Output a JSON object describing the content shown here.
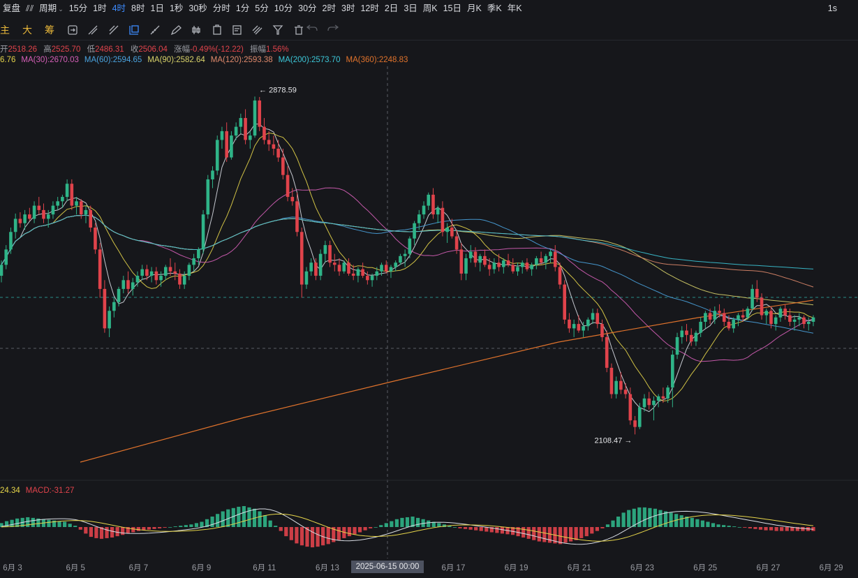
{
  "topbar": {
    "items": [
      "复盘",
      "⫽⫽",
      "周期",
      "15分",
      "1时",
      "4时",
      "8时",
      "1日",
      "1秒",
      "30秒",
      "分时",
      "1分",
      "5分",
      "10分",
      "30分",
      "2时",
      "3时",
      "12时",
      "2日",
      "3日",
      "周K",
      "15日",
      "月K",
      "季K",
      "年K"
    ],
    "active_index": 5,
    "right_label": "1s"
  },
  "toolbar": {
    "labels": [
      "主",
      "大",
      "筹"
    ]
  },
  "ohlc": {
    "open_label": "开",
    "open": "2518.26",
    "high_label": "高",
    "high": "2525.70",
    "low_label": "低",
    "low": "2486.31",
    "close_label": "收",
    "close": "2506.04",
    "change_label": "涨幅",
    "change": "-0.49%(-12.22)",
    "amp_label": "振幅",
    "amp": "1.56%"
  },
  "ma_legend": [
    {
      "text": "6.76",
      "color": "#e6d54a"
    },
    {
      "text": "MA(30):2670.03",
      "color": "#d65fb8"
    },
    {
      "text": "MA(60):2594.65",
      "color": "#4aa3df"
    },
    {
      "text": "MA(90):2582.64",
      "color": "#d9d36a"
    },
    {
      "text": "MA(120):2593.38",
      "color": "#e08a6c"
    },
    {
      "text": "MA(200):2573.70",
      "color": "#3cc7d8"
    },
    {
      "text": "MA(360):2248.83",
      "color": "#e0732c"
    }
  ],
  "macd_legend": [
    {
      "text": "24.34",
      "color": "#e6d54a"
    },
    {
      "text": "MACD:-31.27",
      "color": "#e0434b"
    }
  ],
  "x_labels": [
    "6月 3",
    "6月 5",
    "6月 7",
    "6月 9",
    "6月 11",
    "6月 13",
    "6月 17",
    "6月 19",
    "6月 21",
    "6月 23",
    "6月 25",
    "6月 27",
    "6月 29"
  ],
  "crosshair_label": "2025-06-15 00:00",
  "colors": {
    "up": "#2fb488",
    "down": "#e0434b",
    "bg": "#16171b"
  },
  "chart_data": {
    "type": "candlestick",
    "title": "",
    "ylim": [
      2040,
      2940
    ],
    "x_domain_days": [
      2.0,
      29.5
    ],
    "high_marker": "2878.59",
    "low_marker": "2108.47",
    "candles_ohlc": [
      [
        2470,
        2505,
        2455,
        2495
      ],
      [
        2495,
        2540,
        2485,
        2530
      ],
      [
        2530,
        2580,
        2520,
        2570
      ],
      [
        2570,
        2612,
        2555,
        2600
      ],
      [
        2600,
        2615,
        2580,
        2590
      ],
      [
        2590,
        2620,
        2575,
        2610
      ],
      [
        2610,
        2625,
        2595,
        2600
      ],
      [
        2600,
        2640,
        2590,
        2630
      ],
      [
        2630,
        2650,
        2610,
        2620
      ],
      [
        2620,
        2635,
        2590,
        2600
      ],
      [
        2600,
        2620,
        2580,
        2610
      ],
      [
        2610,
        2640,
        2600,
        2630
      ],
      [
        2630,
        2650,
        2620,
        2640
      ],
      [
        2640,
        2655,
        2625,
        2650
      ],
      [
        2650,
        2690,
        2640,
        2680
      ],
      [
        2680,
        2690,
        2620,
        2630
      ],
      [
        2630,
        2650,
        2610,
        2640
      ],
      [
        2640,
        2645,
        2600,
        2610
      ],
      [
        2610,
        2630,
        2590,
        2620
      ],
      [
        2620,
        2630,
        2570,
        2580
      ],
      [
        2580,
        2590,
        2520,
        2530
      ],
      [
        2530,
        2545,
        2420,
        2440
      ],
      [
        2440,
        2460,
        2340,
        2350
      ],
      [
        2350,
        2400,
        2330,
        2390
      ],
      [
        2390,
        2420,
        2375,
        2410
      ],
      [
        2410,
        2445,
        2400,
        2440
      ],
      [
        2440,
        2470,
        2430,
        2460
      ],
      [
        2460,
        2480,
        2430,
        2440
      ],
      [
        2440,
        2465,
        2425,
        2455
      ],
      [
        2455,
        2480,
        2445,
        2470
      ],
      [
        2470,
        2495,
        2460,
        2485
      ],
      [
        2485,
        2495,
        2460,
        2470
      ],
      [
        2470,
        2490,
        2455,
        2480
      ],
      [
        2480,
        2490,
        2450,
        2460
      ],
      [
        2460,
        2480,
        2445,
        2470
      ],
      [
        2470,
        2495,
        2460,
        2490
      ],
      [
        2490,
        2510,
        2470,
        2480
      ],
      [
        2480,
        2500,
        2460,
        2475
      ],
      [
        2475,
        2485,
        2440,
        2450
      ],
      [
        2450,
        2480,
        2440,
        2470
      ],
      [
        2470,
        2500,
        2460,
        2495
      ],
      [
        2495,
        2520,
        2480,
        2510
      ],
      [
        2510,
        2535,
        2495,
        2530
      ],
      [
        2530,
        2620,
        2520,
        2610
      ],
      [
        2610,
        2700,
        2600,
        2690
      ],
      [
        2690,
        2720,
        2670,
        2710
      ],
      [
        2710,
        2790,
        2700,
        2780
      ],
      [
        2780,
        2810,
        2760,
        2800
      ],
      [
        2800,
        2820,
        2730,
        2740
      ],
      [
        2740,
        2800,
        2735,
        2790
      ],
      [
        2790,
        2820,
        2780,
        2810
      ],
      [
        2810,
        2840,
        2795,
        2830
      ],
      [
        2830,
        2850,
        2770,
        2780
      ],
      [
        2780,
        2800,
        2760,
        2790
      ],
      [
        2790,
        2879,
        2785,
        2870
      ],
      [
        2870,
        2878,
        2800,
        2810
      ],
      [
        2810,
        2830,
        2770,
        2780
      ],
      [
        2780,
        2800,
        2755,
        2770
      ],
      [
        2770,
        2790,
        2745,
        2760
      ],
      [
        2760,
        2780,
        2730,
        2740
      ],
      [
        2740,
        2760,
        2690,
        2700
      ],
      [
        2700,
        2720,
        2640,
        2650
      ],
      [
        2650,
        2670,
        2630,
        2640
      ],
      [
        2640,
        2660,
        2560,
        2570
      ],
      [
        2570,
        2580,
        2420,
        2450
      ],
      [
        2450,
        2490,
        2440,
        2480
      ],
      [
        2480,
        2510,
        2470,
        2500
      ],
      [
        2500,
        2510,
        2460,
        2470
      ],
      [
        2470,
        2530,
        2460,
        2520
      ],
      [
        2520,
        2550,
        2500,
        2540
      ],
      [
        2540,
        2550,
        2490,
        2500
      ],
      [
        2500,
        2520,
        2480,
        2495
      ],
      [
        2495,
        2510,
        2470,
        2480
      ],
      [
        2480,
        2505,
        2475,
        2500
      ],
      [
        2500,
        2510,
        2470,
        2475
      ],
      [
        2475,
        2495,
        2460,
        2470
      ],
      [
        2470,
        2490,
        2455,
        2485
      ],
      [
        2485,
        2500,
        2465,
        2470
      ],
      [
        2470,
        2480,
        2450,
        2460
      ],
      [
        2460,
        2475,
        2445,
        2470
      ],
      [
        2470,
        2490,
        2460,
        2480
      ],
      [
        2480,
        2500,
        2470,
        2495
      ],
      [
        2495,
        2505,
        2475,
        2480
      ],
      [
        2480,
        2495,
        2465,
        2490
      ],
      [
        2490,
        2505,
        2480,
        2500
      ],
      [
        2500,
        2520,
        2495,
        2515
      ],
      [
        2515,
        2530,
        2490,
        2520
      ],
      [
        2520,
        2560,
        2510,
        2555
      ],
      [
        2555,
        2595,
        2540,
        2590
      ],
      [
        2590,
        2620,
        2575,
        2610
      ],
      [
        2610,
        2640,
        2600,
        2630
      ],
      [
        2630,
        2660,
        2620,
        2655
      ],
      [
        2655,
        2670,
        2600,
        2610
      ],
      [
        2610,
        2630,
        2590,
        2625
      ],
      [
        2625,
        2640,
        2560,
        2570
      ],
      [
        2570,
        2590,
        2545,
        2580
      ],
      [
        2580,
        2600,
        2555,
        2560
      ],
      [
        2560,
        2575,
        2520,
        2530
      ],
      [
        2530,
        2545,
        2460,
        2475
      ],
      [
        2475,
        2520,
        2460,
        2510
      ],
      [
        2510,
        2540,
        2500,
        2525
      ],
      [
        2525,
        2535,
        2490,
        2500
      ],
      [
        2500,
        2520,
        2480,
        2515
      ],
      [
        2515,
        2530,
        2490,
        2495
      ],
      [
        2495,
        2510,
        2470,
        2485
      ],
      [
        2485,
        2510,
        2475,
        2500
      ],
      [
        2500,
        2520,
        2480,
        2490
      ],
      [
        2490,
        2510,
        2475,
        2505
      ],
      [
        2505,
        2520,
        2490,
        2495
      ],
      [
        2495,
        2510,
        2475,
        2480
      ],
      [
        2480,
        2500,
        2470,
        2490
      ],
      [
        2490,
        2505,
        2475,
        2500
      ],
      [
        2500,
        2510,
        2480,
        2485
      ],
      [
        2485,
        2500,
        2470,
        2495
      ],
      [
        2495,
        2515,
        2485,
        2510
      ],
      [
        2510,
        2525,
        2495,
        2500
      ],
      [
        2500,
        2520,
        2485,
        2515
      ],
      [
        2515,
        2530,
        2500,
        2525
      ],
      [
        2525,
        2540,
        2480,
        2490
      ],
      [
        2490,
        2500,
        2440,
        2450
      ],
      [
        2450,
        2460,
        2360,
        2370
      ],
      [
        2370,
        2385,
        2340,
        2350
      ],
      [
        2350,
        2370,
        2330,
        2360
      ],
      [
        2360,
        2380,
        2340,
        2345
      ],
      [
        2345,
        2365,
        2330,
        2355
      ],
      [
        2355,
        2375,
        2345,
        2370
      ],
      [
        2370,
        2395,
        2360,
        2385
      ],
      [
        2385,
        2395,
        2350,
        2360
      ],
      [
        2360,
        2370,
        2320,
        2330
      ],
      [
        2330,
        2345,
        2250,
        2260
      ],
      [
        2260,
        2270,
        2190,
        2200
      ],
      [
        2200,
        2240,
        2190,
        2230
      ],
      [
        2230,
        2250,
        2200,
        2210
      ],
      [
        2210,
        2225,
        2190,
        2200
      ],
      [
        2200,
        2215,
        2130,
        2140
      ],
      [
        2140,
        2150,
        2108,
        2125
      ],
      [
        2125,
        2180,
        2120,
        2170
      ],
      [
        2170,
        2200,
        2160,
        2190
      ],
      [
        2190,
        2205,
        2165,
        2175
      ],
      [
        2175,
        2195,
        2140,
        2185
      ],
      [
        2185,
        2200,
        2170,
        2195
      ],
      [
        2195,
        2215,
        2180,
        2190
      ],
      [
        2190,
        2220,
        2180,
        2215
      ],
      [
        2215,
        2300,
        2170,
        2290
      ],
      [
        2290,
        2340,
        2280,
        2330
      ],
      [
        2330,
        2355,
        2315,
        2345
      ],
      [
        2345,
        2360,
        2320,
        2335
      ],
      [
        2335,
        2350,
        2310,
        2320
      ],
      [
        2320,
        2345,
        2310,
        2340
      ],
      [
        2340,
        2375,
        2330,
        2365
      ],
      [
        2365,
        2390,
        2350,
        2385
      ],
      [
        2385,
        2395,
        2360,
        2370
      ],
      [
        2370,
        2400,
        2360,
        2390
      ],
      [
        2390,
        2405,
        2375,
        2385
      ],
      [
        2385,
        2395,
        2355,
        2365
      ],
      [
        2365,
        2380,
        2345,
        2350
      ],
      [
        2350,
        2375,
        2340,
        2370
      ],
      [
        2370,
        2385,
        2355,
        2380
      ],
      [
        2380,
        2395,
        2365,
        2375
      ],
      [
        2375,
        2400,
        2370,
        2395
      ],
      [
        2395,
        2450,
        2390,
        2440
      ],
      [
        2440,
        2460,
        2410,
        2420
      ],
      [
        2420,
        2430,
        2370,
        2380
      ],
      [
        2380,
        2395,
        2360,
        2390
      ],
      [
        2390,
        2400,
        2350,
        2360
      ],
      [
        2360,
        2380,
        2345,
        2375
      ],
      [
        2375,
        2400,
        2365,
        2395
      ],
      [
        2395,
        2405,
        2370,
        2380
      ],
      [
        2380,
        2395,
        2355,
        2365
      ],
      [
        2365,
        2380,
        2345,
        2370
      ],
      [
        2370,
        2385,
        2355,
        2375
      ],
      [
        2375,
        2380,
        2350,
        2360
      ],
      [
        2360,
        2375,
        2345,
        2365
      ],
      [
        2365,
        2380,
        2355,
        2375
      ]
    ],
    "macd_hist": [
      6,
      9,
      11,
      13,
      14,
      15,
      14,
      13,
      12,
      11,
      10,
      9,
      8,
      5,
      2,
      -4,
      -10,
      -15,
      -17,
      -18,
      -17,
      -16,
      -14,
      -12,
      -10,
      -8,
      -6,
      -5,
      -4,
      -3,
      -2,
      -1,
      0,
      1,
      2,
      3,
      4,
      6,
      8,
      12,
      16,
      20,
      24,
      27,
      29,
      31,
      32,
      30,
      28,
      24,
      18,
      10,
      2,
      -6,
      -14,
      -20,
      -25,
      -28,
      -30,
      -31,
      -30,
      -28,
      -26,
      -23,
      -20,
      -17,
      -14,
      -11,
      -8,
      -5,
      -2,
      0,
      3,
      6,
      9,
      12,
      14,
      15,
      16,
      14,
      12,
      10,
      8,
      6,
      4,
      2,
      0,
      -2,
      -3,
      -4,
      -5,
      -6,
      -7,
      -8,
      -9,
      -10,
      -11,
      -12,
      -14,
      -16,
      -18,
      -20,
      -22,
      -23,
      -24,
      -25,
      -26,
      -24,
      -22,
      -20,
      -17,
      -14,
      -10,
      -6,
      -2,
      4,
      10,
      16,
      22,
      26,
      28,
      30,
      30,
      29,
      28,
      26,
      24,
      22,
      20,
      18,
      16,
      14,
      12,
      10,
      8,
      6,
      4,
      3,
      2,
      1,
      0,
      -1,
      -2,
      -3,
      -4,
      -5,
      -5,
      -6,
      -6,
      -6,
      -6,
      -6,
      -6,
      -6,
      -6
    ]
  }
}
